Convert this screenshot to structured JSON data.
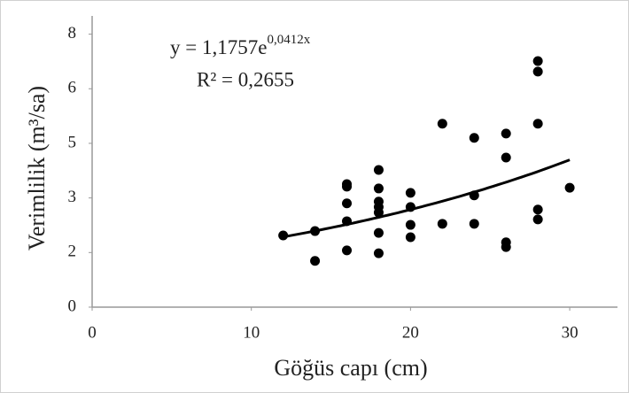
{
  "chart_data": {
    "type": "scatter",
    "x_label": "Göğüs capı (cm)",
    "y_label": "Verimlilik (m³/sa)",
    "x": [
      12,
      14,
      14,
      16,
      16,
      16,
      16,
      16,
      18,
      18,
      18,
      18,
      18,
      18,
      18,
      20,
      20,
      20,
      20,
      22,
      22,
      24,
      24,
      24,
      26,
      26,
      26,
      26,
      28,
      28,
      28,
      28,
      28,
      30
    ],
    "values": [
      1.97,
      2.09,
      1.27,
      3.38,
      3.31,
      2.85,
      2.36,
      1.56,
      3.77,
      3.26,
      2.9,
      2.75,
      2.6,
      2.04,
      1.48,
      3.14,
      2.75,
      2.26,
      1.92,
      5.04,
      2.29,
      4.65,
      3.07,
      2.29,
      4.77,
      4.11,
      1.78,
      1.65,
      6.76,
      6.47,
      5.04,
      2.68,
      2.41,
      3.28
    ],
    "color": "#000000",
    "xlim": [
      0,
      33
    ],
    "xticks": [
      0,
      10,
      20,
      30
    ],
    "ylim": [
      0,
      8
    ],
    "yticks": [
      0,
      {
        "value": 1.5,
        "label": "2"
      },
      3,
      {
        "value": 4.5,
        "label": "5"
      },
      6,
      {
        "value": 7.5,
        "label": "8"
      }
    ],
    "trendline": {
      "type": "exponential",
      "a": 1.1757,
      "b": 0.0412,
      "equation_base": "y = 1,1757e",
      "equation_exponent": "0,0412x",
      "r_squared_label": "R² = 0,2655"
    }
  }
}
